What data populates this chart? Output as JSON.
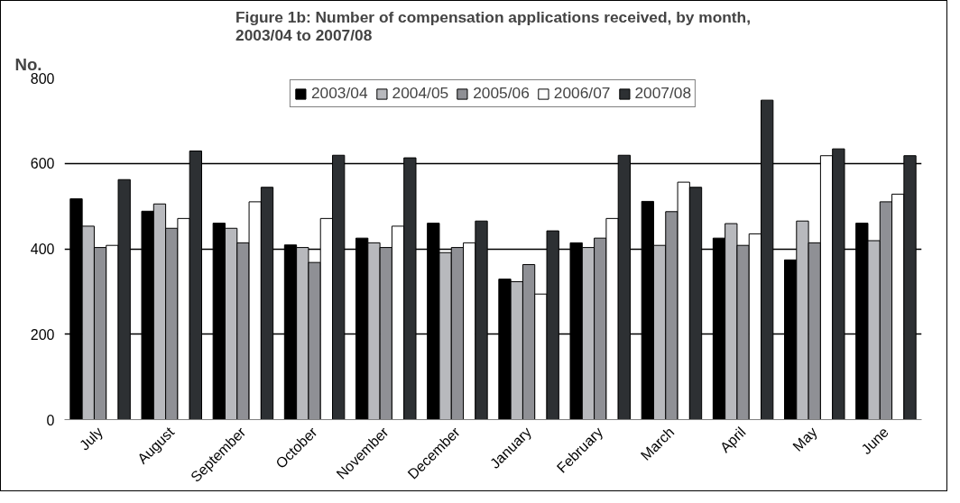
{
  "chart_data": {
    "type": "bar",
    "title": "Figure 1b: Number of compensation applications received, by month, 2003/04 to 2007/08",
    "ylabel": "No.",
    "categories": [
      "July",
      "August",
      "September",
      "October",
      "November",
      "December",
      "January",
      "February",
      "March",
      "April",
      "May",
      "June"
    ],
    "series": [
      {
        "name": "2003/04",
        "color": "#000000",
        "values": [
          517,
          488,
          460,
          409,
          425,
          460,
          329,
          414,
          511,
          425,
          374,
          460
        ]
      },
      {
        "name": "2004/05",
        "color": "#b8b9bd",
        "values": [
          453,
          505,
          448,
          403,
          414,
          391,
          323,
          403,
          408,
          459,
          465,
          419
        ]
      },
      {
        "name": "2005/06",
        "color": "#8f9095",
        "values": [
          403,
          448,
          414,
          368,
          403,
          403,
          363,
          425,
          487,
          408,
          414,
          510
        ]
      },
      {
        "name": "2006/07",
        "color": "#ffffff",
        "values": [
          408,
          471,
          510,
          471,
          453,
          414,
          294,
          471,
          556,
          435,
          618,
          528
        ]
      },
      {
        "name": "2007/08",
        "color": "#2d3033",
        "values": [
          562,
          629,
          544,
          619,
          613,
          465,
          442,
          619,
          544,
          748,
          634,
          618
        ]
      }
    ],
    "ylim": [
      0,
      800
    ],
    "yticks": [
      0,
      200,
      400,
      600,
      800
    ],
    "grid": "y",
    "legend": "top"
  }
}
